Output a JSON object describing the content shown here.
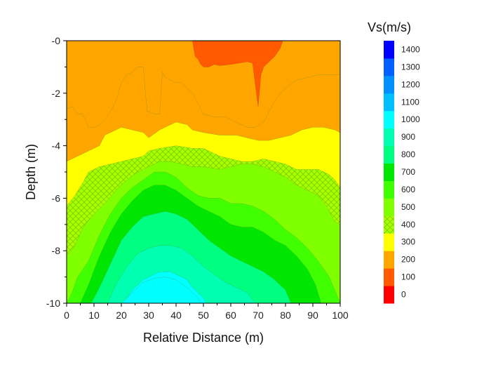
{
  "chart_data": {
    "type": "contour",
    "title": "",
    "xlabel": "Relative Distance (m)",
    "ylabel": "Depth (m)",
    "xlim": [
      0,
      100
    ],
    "ylim": [
      -10,
      0
    ],
    "x_ticks": [
      0,
      10,
      20,
      30,
      40,
      50,
      60,
      70,
      80,
      90,
      100
    ],
    "y_ticks": [
      -10,
      -8,
      -6,
      -4,
      -2,
      0
    ],
    "x_tick_labels": [
      "0",
      "10",
      "20",
      "30",
      "40",
      "50",
      "60",
      "70",
      "80",
      "90",
      "100"
    ],
    "y_tick_labels": [
      "-10",
      "-8",
      "-6",
      "-4",
      "-2",
      "-0"
    ],
    "colorbar": {
      "title": "Vs(m/s)",
      "levels": [
        0,
        100,
        200,
        300,
        400,
        500,
        600,
        700,
        800,
        900,
        1000,
        1100,
        1200,
        1300,
        1400
      ],
      "labels": [
        "0",
        "100",
        "200",
        "300",
        "400",
        "500",
        "600",
        "700",
        "800",
        "900",
        "1000",
        "1100",
        "1200",
        "1300",
        "1400"
      ],
      "colors": [
        "#ff0000",
        "#ff5a00",
        "#ffa500",
        "#ffff00",
        "#a6ff00",
        "#7fff00",
        "#3fff00",
        "#00e600",
        "#00ff80",
        "#00ffb0",
        "#00ffff",
        "#00bfff",
        "#0090ff",
        "#005fff",
        "#0000ff"
      ],
      "hatched_level": 400
    },
    "regions": [
      {
        "level": 100,
        "color": "#ff5a00",
        "boundary": [
          [
            46,
            0
          ],
          [
            47,
            -0.6
          ],
          [
            48,
            -0.7
          ],
          [
            49,
            -0.9
          ],
          [
            50,
            -1
          ],
          [
            52,
            -1
          ],
          [
            54,
            -0.9
          ],
          [
            56,
            -0.95
          ],
          [
            60,
            -0.9
          ],
          [
            63,
            -0.85
          ],
          [
            66,
            -0.8
          ],
          [
            68,
            -0.85
          ],
          [
            70,
            -2.5
          ],
          [
            71,
            -1.3
          ],
          [
            72,
            -1
          ],
          [
            74,
            -0.8
          ],
          [
            76,
            -0.6
          ],
          [
            78,
            -0.3
          ],
          [
            79,
            0
          ]
        ]
      },
      {
        "level": 200,
        "color": "#ffa500",
        "boundary": [
          [
            0,
            -2.6
          ],
          [
            2,
            -2.5
          ],
          [
            4,
            -2.8
          ],
          [
            6,
            -2.8
          ],
          [
            8,
            -3.3
          ],
          [
            10,
            -3.3
          ],
          [
            12,
            -3.2
          ],
          [
            14,
            -3
          ],
          [
            16,
            -2.7
          ],
          [
            18,
            -2.3
          ],
          [
            20,
            -1.6
          ],
          [
            22,
            -1.3
          ],
          [
            24,
            -1.2
          ],
          [
            26,
            -1
          ],
          [
            28,
            -1
          ],
          [
            29,
            -2.2
          ],
          [
            29.5,
            -2.7
          ],
          [
            30,
            -2.7
          ],
          [
            32,
            -2.8
          ],
          [
            34,
            -2.8
          ],
          [
            35,
            -1.2
          ],
          [
            36,
            -1.4
          ],
          [
            38,
            -1.5
          ],
          [
            40,
            -1.6
          ],
          [
            42,
            -1.6
          ],
          [
            44,
            -1.8
          ],
          [
            46,
            -2
          ],
          [
            48,
            -2.4
          ],
          [
            50,
            -2.8
          ],
          [
            54,
            -2.9
          ],
          [
            58,
            -2.9
          ],
          [
            62,
            -3.1
          ],
          [
            66,
            -3.3
          ],
          [
            69,
            -3.3
          ],
          [
            72,
            -3.1
          ],
          [
            74,
            -2.7
          ],
          [
            76,
            -2.3
          ],
          [
            80,
            -1.8
          ],
          [
            84,
            -1.5
          ],
          [
            88,
            -1.4
          ],
          [
            92,
            -1.3
          ],
          [
            96,
            -1.3
          ],
          [
            100,
            -1.3
          ]
        ]
      },
      {
        "level": 300,
        "color": "#ffff00",
        "boundary": [
          [
            0,
            -4.6
          ],
          [
            2,
            -4.5
          ],
          [
            4,
            -4.4
          ],
          [
            6,
            -4.3
          ],
          [
            8,
            -4.2
          ],
          [
            10,
            -4.1
          ],
          [
            12,
            -4
          ],
          [
            14,
            -3.6
          ],
          [
            16,
            -3.5
          ],
          [
            18,
            -3.4
          ],
          [
            20,
            -3.3
          ],
          [
            24,
            -3.4
          ],
          [
            28,
            -3.5
          ],
          [
            30,
            -3.7
          ],
          [
            34,
            -3.4
          ],
          [
            36,
            -3.3
          ],
          [
            40,
            -3.1
          ],
          [
            44,
            -3.2
          ],
          [
            46,
            -3.4
          ],
          [
            50,
            -3.5
          ],
          [
            56,
            -3.6
          ],
          [
            62,
            -3.6
          ],
          [
            66,
            -3.7
          ],
          [
            70,
            -3.8
          ],
          [
            74,
            -3.8
          ],
          [
            78,
            -3.7
          ],
          [
            82,
            -3.6
          ],
          [
            86,
            -3.4
          ],
          [
            90,
            -3.3
          ],
          [
            94,
            -3.3
          ],
          [
            98,
            -3.4
          ],
          [
            100,
            -3.5
          ]
        ]
      },
      {
        "level": 400,
        "color": "#a6ff00",
        "hatched": true,
        "boundary": [
          [
            0,
            -6.3
          ],
          [
            3,
            -5.9
          ],
          [
            6,
            -5.4
          ],
          [
            8,
            -5
          ],
          [
            12,
            -4.8
          ],
          [
            16,
            -4.7
          ],
          [
            20,
            -4.6
          ],
          [
            24,
            -4.5
          ],
          [
            28,
            -4.4
          ],
          [
            30,
            -4.2
          ],
          [
            34,
            -4.1
          ],
          [
            40,
            -4
          ],
          [
            46,
            -4.1
          ],
          [
            50,
            -4.1
          ],
          [
            56,
            -4.4
          ],
          [
            60,
            -4.5
          ],
          [
            64,
            -4.6
          ],
          [
            68,
            -4.6
          ],
          [
            72,
            -4.5
          ],
          [
            76,
            -4.6
          ],
          [
            80,
            -4.7
          ],
          [
            84,
            -4.9
          ],
          [
            88,
            -4.9
          ],
          [
            92,
            -4.9
          ],
          [
            96,
            -5.1
          ],
          [
            98,
            -5.3
          ],
          [
            100,
            -5.6
          ]
        ]
      },
      {
        "level": 500,
        "color": "#7fff00",
        "boundary": [
          [
            0,
            -8.2
          ],
          [
            3,
            -7.8
          ],
          [
            6,
            -7.1
          ],
          [
            10,
            -6.6
          ],
          [
            14,
            -6.2
          ],
          [
            18,
            -5.7
          ],
          [
            22,
            -5.3
          ],
          [
            26,
            -5
          ],
          [
            30,
            -4.8
          ],
          [
            34,
            -4.6
          ],
          [
            38,
            -4.6
          ],
          [
            42,
            -4.7
          ],
          [
            46,
            -4.8
          ],
          [
            50,
            -4.8
          ],
          [
            56,
            -4.9
          ],
          [
            60,
            -4.8
          ],
          [
            64,
            -4.7
          ],
          [
            68,
            -4.7
          ],
          [
            72,
            -4.8
          ],
          [
            76,
            -5
          ],
          [
            80,
            -5.2
          ],
          [
            84,
            -5.5
          ],
          [
            88,
            -5.7
          ],
          [
            92,
            -5.9
          ],
          [
            95,
            -6.3
          ],
          [
            98,
            -6.9
          ],
          [
            100,
            -7
          ]
        ]
      },
      {
        "level": 600,
        "color": "#3fff00",
        "boundary": [
          [
            0,
            -10
          ],
          [
            2,
            -9.6
          ],
          [
            4,
            -9
          ],
          [
            8,
            -8.4
          ],
          [
            12,
            -7.4
          ],
          [
            16,
            -6.6
          ],
          [
            20,
            -6
          ],
          [
            24,
            -5.6
          ],
          [
            28,
            -5.3
          ],
          [
            32,
            -5
          ],
          [
            36,
            -5
          ],
          [
            40,
            -5.2
          ],
          [
            44,
            -5.6
          ],
          [
            48,
            -5.9
          ],
          [
            52,
            -6
          ],
          [
            56,
            -6
          ],
          [
            60,
            -6.2
          ],
          [
            64,
            -6.2
          ],
          [
            68,
            -6.3
          ],
          [
            72,
            -6.5
          ],
          [
            76,
            -6.8
          ],
          [
            80,
            -7.2
          ],
          [
            84,
            -7.5
          ],
          [
            88,
            -7.9
          ],
          [
            92,
            -8.4
          ],
          [
            96,
            -9
          ],
          [
            98,
            -9.5
          ],
          [
            100,
            -10
          ]
        ]
      },
      {
        "level": 700,
        "color": "#00e600",
        "boundary": [
          [
            5,
            -10
          ],
          [
            8,
            -9.3
          ],
          [
            12,
            -8.2
          ],
          [
            16,
            -7.3
          ],
          [
            20,
            -6.6
          ],
          [
            24,
            -6.1
          ],
          [
            28,
            -5.7
          ],
          [
            32,
            -5.5
          ],
          [
            36,
            -5.5
          ],
          [
            40,
            -5.7
          ],
          [
            44,
            -6
          ],
          [
            48,
            -6.3
          ],
          [
            52,
            -6.5
          ],
          [
            56,
            -6.7
          ],
          [
            60,
            -7
          ],
          [
            64,
            -7.1
          ],
          [
            68,
            -7.1
          ],
          [
            72,
            -7.3
          ],
          [
            76,
            -7.6
          ],
          [
            80,
            -7.8
          ],
          [
            84,
            -8.2
          ],
          [
            88,
            -8.7
          ],
          [
            91,
            -9.3
          ],
          [
            93,
            -10
          ]
        ]
      },
      {
        "level": 800,
        "color": "#00ff80",
        "boundary": [
          [
            9,
            -10
          ],
          [
            12,
            -9.4
          ],
          [
            16,
            -8.5
          ],
          [
            20,
            -7.6
          ],
          [
            24,
            -7.1
          ],
          [
            28,
            -6.7
          ],
          [
            32,
            -6.6
          ],
          [
            36,
            -6.5
          ],
          [
            40,
            -6.6
          ],
          [
            44,
            -6.8
          ],
          [
            48,
            -7.2
          ],
          [
            52,
            -7.6
          ],
          [
            56,
            -7.9
          ],
          [
            60,
            -8.2
          ],
          [
            64,
            -8.4
          ],
          [
            68,
            -8.6
          ],
          [
            72,
            -8.8
          ],
          [
            76,
            -9.1
          ],
          [
            80,
            -9.5
          ],
          [
            82,
            -10
          ]
        ]
      },
      {
        "level": 900,
        "color": "#00ffb0",
        "boundary": [
          [
            15,
            -10
          ],
          [
            18,
            -9.3
          ],
          [
            22,
            -8.6
          ],
          [
            26,
            -8.1
          ],
          [
            30,
            -7.9
          ],
          [
            34,
            -7.8
          ],
          [
            38,
            -7.8
          ],
          [
            42,
            -7.9
          ],
          [
            46,
            -8.2
          ],
          [
            50,
            -8.6
          ],
          [
            54,
            -8.9
          ],
          [
            58,
            -9.2
          ],
          [
            62,
            -9.4
          ],
          [
            66,
            -9.6
          ],
          [
            69,
            -10
          ]
        ]
      },
      {
        "level": 1000,
        "color": "#00ffff",
        "boundary": [
          [
            20,
            -10
          ],
          [
            22,
            -9.8
          ],
          [
            24,
            -9.5
          ],
          [
            26,
            -9.3
          ],
          [
            28,
            -9.1
          ],
          [
            30,
            -9
          ],
          [
            32,
            -8.9
          ],
          [
            34,
            -8.8
          ],
          [
            36,
            -8.8
          ],
          [
            38,
            -8.8
          ],
          [
            40,
            -8.9
          ],
          [
            42,
            -9
          ],
          [
            44,
            -9.1
          ],
          [
            46,
            -9.4
          ],
          [
            48,
            -9.6
          ],
          [
            50,
            -9.8
          ],
          [
            51,
            -10
          ]
        ]
      },
      {
        "level": 1000,
        "color": "#00ffff",
        "boundary": [
          [
            20,
            -10
          ],
          [
            24,
            -9.6
          ],
          [
            28,
            -9.2
          ],
          [
            32,
            -9.05
          ],
          [
            36,
            -9
          ],
          [
            40,
            -9.1
          ],
          [
            44,
            -9.4
          ],
          [
            48,
            -9.8
          ],
          [
            49,
            -10
          ]
        ]
      }
    ]
  }
}
